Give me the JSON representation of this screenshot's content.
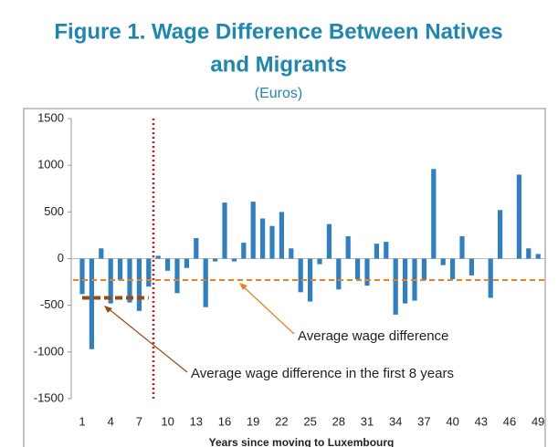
{
  "chart_data": {
    "type": "bar",
    "title_lines": [
      "Figure 1. Wage Difference Between Natives",
      "and Migrants"
    ],
    "subtitle": "(Euros)",
    "x_label": "Years since moving to Luxembourg",
    "categories": [
      1,
      null,
      null,
      4,
      null,
      null,
      7,
      null,
      null,
      10,
      null,
      null,
      13,
      null,
      null,
      16,
      null,
      null,
      19,
      null,
      null,
      22,
      null,
      null,
      25,
      null,
      null,
      28,
      null,
      null,
      31,
      null,
      null,
      34,
      null,
      null,
      37,
      null,
      null,
      40,
      null,
      null,
      43,
      null,
      null,
      46,
      null,
      null,
      49
    ],
    "values": [
      -380,
      -970,
      110,
      -480,
      -230,
      -470,
      -560,
      -300,
      30,
      -130,
      -370,
      -100,
      220,
      -520,
      -30,
      600,
      -30,
      170,
      610,
      430,
      350,
      500,
      110,
      -360,
      -460,
      -60,
      370,
      -330,
      240,
      -220,
      -290,
      160,
      180,
      -600,
      -480,
      -450,
      -230,
      960,
      -70,
      -220,
      240,
      -180,
      0,
      -420,
      520,
      0,
      900,
      110,
      50
    ],
    "color": "#2f80c3",
    "ylim": [
      -1500,
      1500
    ],
    "yticks": [
      -1500,
      -1000,
      -500,
      0,
      500,
      1000,
      1500
    ],
    "reference_lines": [
      {
        "value": -230,
        "label": "Average wage difference",
        "color": "#f07f1e"
      },
      {
        "value": -420,
        "label": "Average wage difference in the first 8 years",
        "color": "#9c4a12",
        "span": [
          1,
          8
        ]
      }
    ],
    "vline": {
      "x": 8.5,
      "color": "#e01010"
    }
  }
}
